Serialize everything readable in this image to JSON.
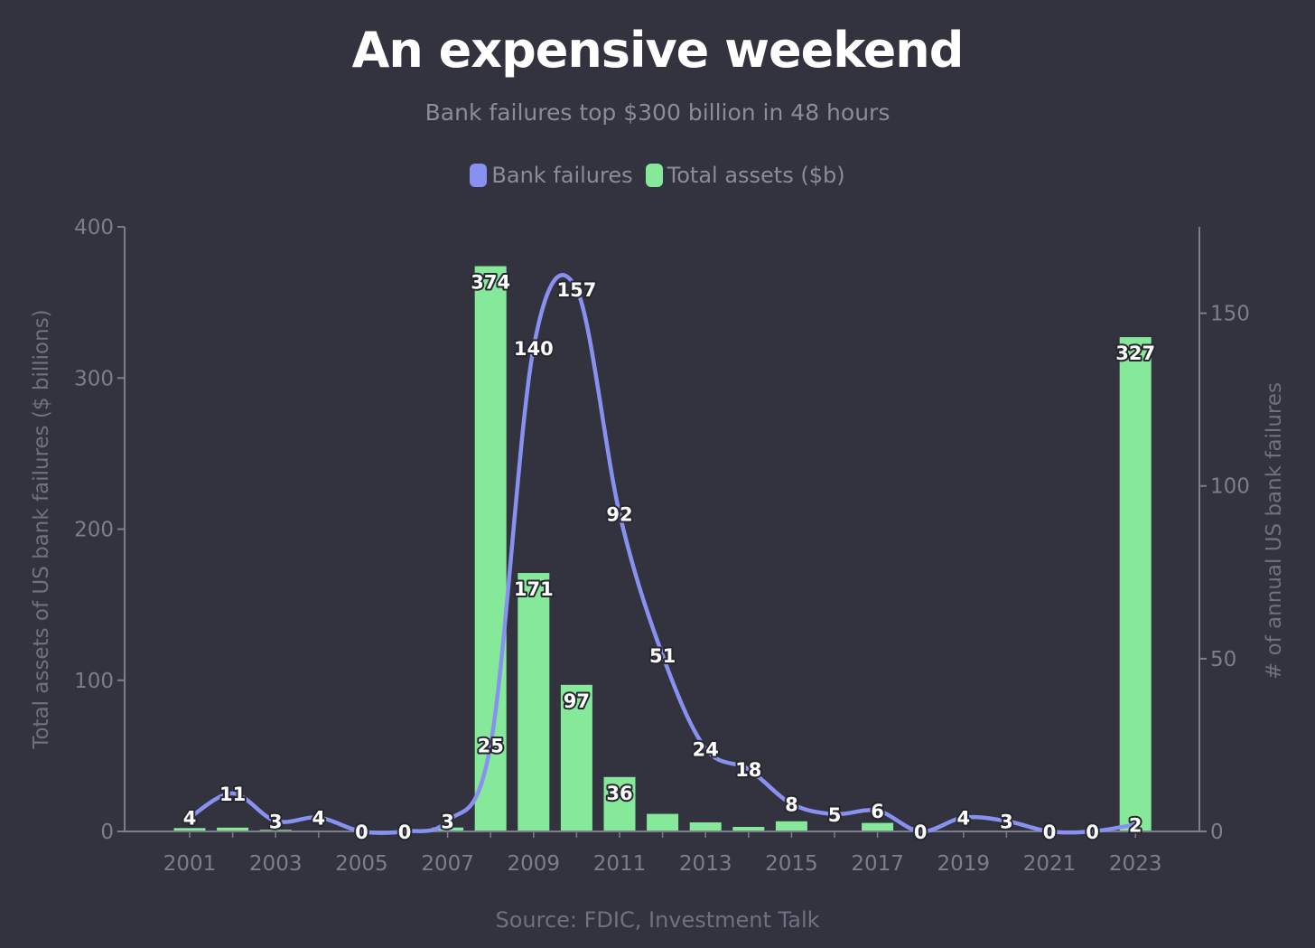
{
  "chart_data": {
    "type": "bar",
    "title": "An expensive weekend",
    "subtitle": "Bank failures top $300 billion in 48 hours",
    "source": "Source: FDIC, Investment Talk",
    "legend_position": "top-center",
    "grid": false,
    "x": [
      "2001",
      "2002",
      "2003",
      "2004",
      "2005",
      "2006",
      "2007",
      "2008",
      "2009",
      "2010",
      "2011",
      "2012",
      "2013",
      "2014",
      "2015",
      "2016",
      "2017",
      "2018",
      "2019",
      "2020",
      "2021",
      "2022",
      "2023"
    ],
    "x_tick_labels": [
      "2001",
      "2003",
      "2005",
      "2007",
      "2009",
      "2011",
      "2013",
      "2015",
      "2017",
      "2019",
      "2021",
      "2023"
    ],
    "series": [
      {
        "name": "Bank failures",
        "type": "line",
        "axis": "right",
        "color": "#8891f0",
        "values": [
          4,
          11,
          3,
          4,
          0,
          0,
          3,
          25,
          140,
          157,
          92,
          51,
          24,
          18,
          8,
          5,
          6,
          0,
          4,
          3,
          0,
          0,
          2
        ]
      },
      {
        "name": "Total assets ($b)",
        "type": "bar",
        "axis": "left",
        "color": "#86e899",
        "values": [
          2.2,
          2.5,
          1.1,
          0.2,
          0,
          0,
          2.6,
          374,
          171,
          97,
          36,
          11.6,
          6,
          3,
          6.7,
          0.3,
          5.6,
          0,
          0.2,
          0.5,
          0,
          0,
          327
        ],
        "labels": {
          "2008": "374",
          "2009": "171",
          "2010": "97",
          "2011": "36",
          "2023": "327"
        }
      }
    ],
    "y_left": {
      "label": "Total assets of US bank failures ($ billions)",
      "ylim": [
        0,
        400
      ],
      "ticks": [
        "0",
        "100",
        "200",
        "300",
        "400"
      ]
    },
    "y_right": {
      "label": "# of annual US bank failures",
      "ylim": [
        0,
        175
      ],
      "ticks": [
        "0",
        "50",
        "100",
        "150"
      ]
    }
  }
}
